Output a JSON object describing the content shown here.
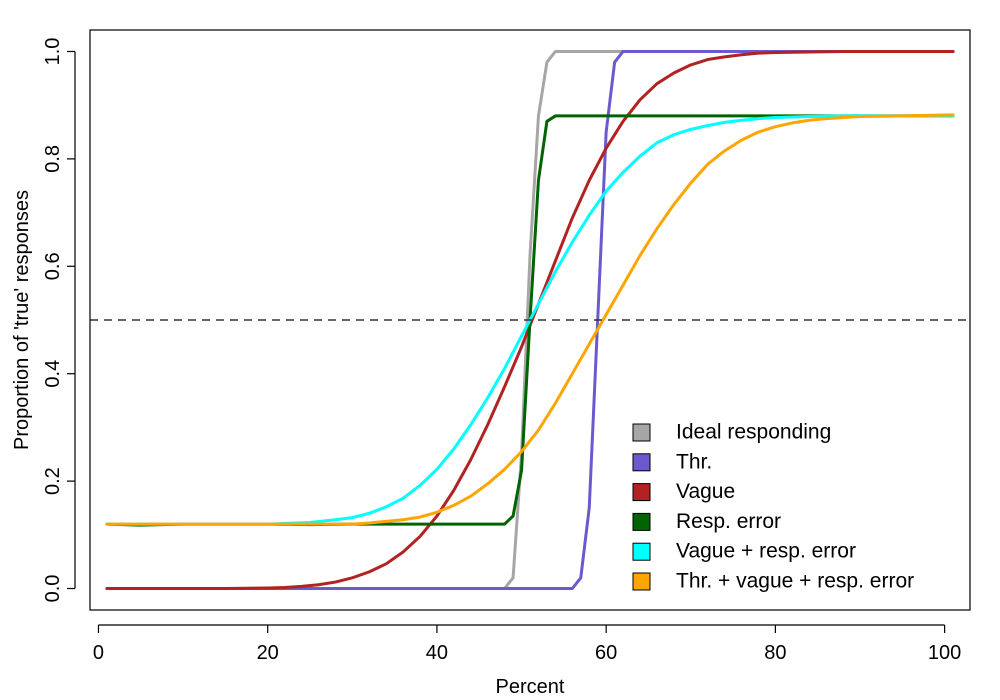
{
  "chart_data": {
    "type": "line",
    "xlabel": "Percent",
    "ylabel": "Proportion of 'true' responses",
    "xlim": [
      -1,
      103
    ],
    "ylim": [
      -0.04,
      1.04
    ],
    "x_ticks": [
      0,
      20,
      40,
      60,
      80,
      100
    ],
    "y_ticks": [
      0.0,
      0.2,
      0.4,
      0.6,
      0.8,
      1.0
    ],
    "x_tick_labels": [
      "0",
      "20",
      "40",
      "60",
      "80",
      "100"
    ],
    "y_tick_labels": [
      "0.0",
      "0.2",
      "0.4",
      "0.6",
      "0.8",
      "1.0"
    ],
    "reference_line": {
      "y": 0.5,
      "style": "dashed"
    },
    "grid": false,
    "legend_position": "bottom-right",
    "series": [
      {
        "name": "Ideal responding",
        "color": "#a6a6a6",
        "x": [
          1,
          10,
          20,
          30,
          40,
          48,
          49,
          50,
          51,
          52,
          53,
          54,
          56,
          60,
          70,
          80,
          90,
          101
        ],
        "y": [
          0,
          0,
          0,
          0,
          0,
          0,
          0.02,
          0.25,
          0.62,
          0.88,
          0.98,
          1.0,
          1.0,
          1.0,
          1.0,
          1.0,
          1.0,
          1.0
        ]
      },
      {
        "name": "Thr.",
        "color": "#6a5acd",
        "x": [
          1,
          10,
          20,
          30,
          40,
          50,
          55,
          56,
          57,
          58,
          59,
          60,
          61,
          62,
          65,
          70,
          80,
          90,
          101
        ],
        "y": [
          0,
          0,
          0,
          0,
          0,
          0,
          0,
          0.0,
          0.02,
          0.15,
          0.5,
          0.85,
          0.98,
          1.0,
          1.0,
          1.0,
          1.0,
          1.0,
          1.0
        ]
      },
      {
        "name": "Vague",
        "color": "#b22222",
        "x": [
          1,
          10,
          15,
          20,
          22,
          24,
          26,
          28,
          30,
          32,
          34,
          36,
          38,
          40,
          42,
          44,
          46,
          48,
          50,
          52,
          54,
          56,
          58,
          60,
          62,
          64,
          66,
          68,
          70,
          72,
          74,
          76,
          78,
          80,
          84,
          88,
          92,
          96,
          101
        ],
        "y": [
          0,
          0,
          0.0,
          0.001,
          0.002,
          0.004,
          0.007,
          0.012,
          0.02,
          0.031,
          0.046,
          0.068,
          0.097,
          0.135,
          0.183,
          0.24,
          0.305,
          0.376,
          0.45,
          0.53,
          0.61,
          0.69,
          0.76,
          0.82,
          0.87,
          0.91,
          0.94,
          0.96,
          0.975,
          0.985,
          0.99,
          0.994,
          0.997,
          0.998,
          0.999,
          1.0,
          1.0,
          1.0,
          1.0
        ]
      },
      {
        "name": "Resp. error",
        "color": "#006400",
        "x": [
          1,
          5,
          10,
          15,
          20,
          25,
          30,
          35,
          40,
          45,
          48,
          49,
          50,
          51,
          52,
          53,
          54,
          56,
          60,
          65,
          70,
          75,
          80,
          85,
          90,
          95,
          101
        ],
        "y": [
          0.12,
          0.118,
          0.12,
          0.12,
          0.12,
          0.119,
          0.12,
          0.12,
          0.12,
          0.12,
          0.12,
          0.135,
          0.22,
          0.5,
          0.76,
          0.87,
          0.88,
          0.88,
          0.88,
          0.88,
          0.88,
          0.88,
          0.88,
          0.88,
          0.88,
          0.88,
          0.88
        ]
      },
      {
        "name": "Vague + resp. error",
        "color": "#00ffff",
        "x": [
          1,
          10,
          20,
          25,
          28,
          30,
          32,
          34,
          36,
          38,
          40,
          42,
          44,
          46,
          48,
          50,
          52,
          54,
          56,
          58,
          60,
          62,
          64,
          66,
          68,
          70,
          72,
          74,
          76,
          78,
          80,
          84,
          88,
          92,
          96,
          101
        ],
        "y": [
          0.12,
          0.12,
          0.12,
          0.123,
          0.128,
          0.132,
          0.14,
          0.152,
          0.168,
          0.192,
          0.222,
          0.26,
          0.305,
          0.355,
          0.41,
          0.47,
          0.53,
          0.59,
          0.645,
          0.695,
          0.74,
          0.775,
          0.805,
          0.83,
          0.845,
          0.855,
          0.862,
          0.868,
          0.872,
          0.875,
          0.877,
          0.879,
          0.88,
          0.88,
          0.88,
          0.88
        ]
      },
      {
        "name": "Thr. + vague + resp. error",
        "color": "#ffa500",
        "x": [
          1,
          10,
          20,
          30,
          32,
          34,
          36,
          38,
          40,
          42,
          44,
          46,
          48,
          50,
          52,
          54,
          56,
          58,
          60,
          62,
          64,
          66,
          68,
          70,
          72,
          74,
          76,
          78,
          80,
          82,
          84,
          86,
          88,
          90,
          95,
          101
        ],
        "y": [
          0.12,
          0.12,
          0.12,
          0.12,
          0.122,
          0.125,
          0.128,
          0.133,
          0.142,
          0.155,
          0.172,
          0.195,
          0.222,
          0.255,
          0.295,
          0.345,
          0.4,
          0.455,
          0.51,
          0.565,
          0.62,
          0.67,
          0.715,
          0.755,
          0.79,
          0.815,
          0.835,
          0.85,
          0.86,
          0.867,
          0.872,
          0.875,
          0.877,
          0.879,
          0.88,
          0.882
        ]
      }
    ]
  }
}
